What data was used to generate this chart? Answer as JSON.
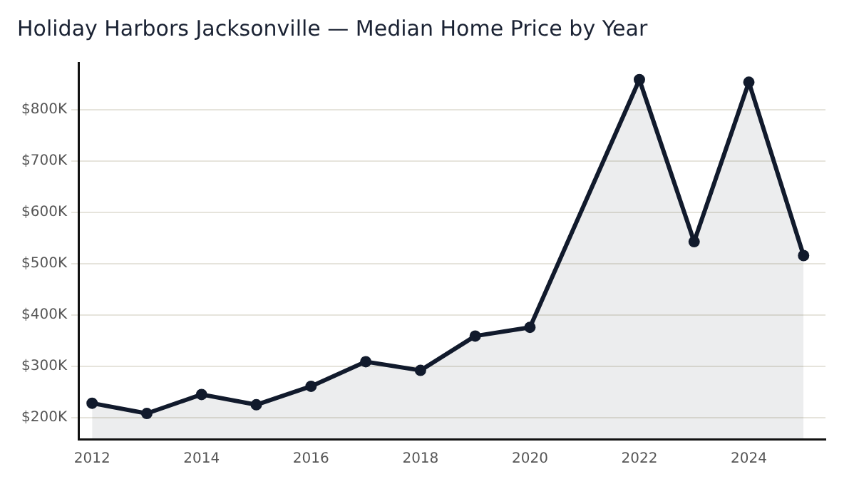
{
  "chart_data": {
    "type": "area",
    "title": "Holiday Harbors Jacksonville — Median Home Price by Year",
    "x": [
      2012,
      2013,
      2014,
      2015,
      2016,
      2017,
      2018,
      2019,
      2020,
      2022,
      2023,
      2024,
      2025
    ],
    "series": [
      {
        "color": "#111a2c",
        "values": [
          228000,
          208000,
          245000,
          225000,
          261000,
          309000,
          292000,
          359000,
          376000,
          859000,
          543000,
          854000,
          516000
        ]
      }
    ],
    "xlim": [
      2011.75,
      2025.4
    ],
    "xticks": [
      2012,
      2014,
      2016,
      2018,
      2020,
      2022,
      2024
    ],
    "ylim": [
      158000,
      892000
    ],
    "yticks": [
      {
        "value": 200000,
        "label": "$200K"
      },
      {
        "value": 300000,
        "label": "$300K"
      },
      {
        "value": 400000,
        "label": "$400K"
      },
      {
        "value": 500000,
        "label": "$500K"
      },
      {
        "value": 600000,
        "label": "$600K"
      },
      {
        "value": 700000,
        "label": "$700K"
      },
      {
        "value": 800000,
        "label": "$800K"
      }
    ],
    "grid": "y",
    "marker": "circle",
    "line_style": "solid",
    "legend": false
  }
}
